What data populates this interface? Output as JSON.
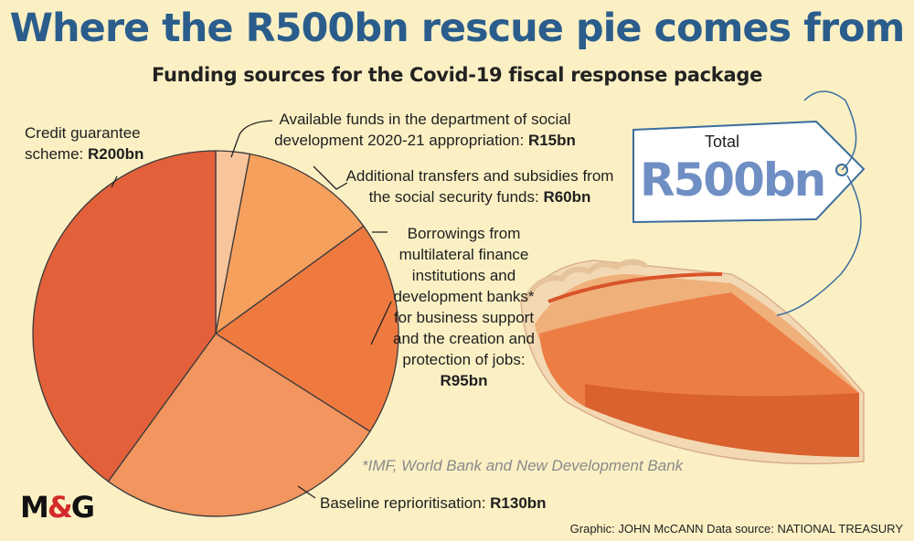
{
  "title": "Where the R500bn rescue pie comes from",
  "subtitle": "Funding sources for the Covid-19 fiscal response package",
  "tag": {
    "label": "Total",
    "value": "R500bn"
  },
  "footnote": "*IMF, World Bank and New Development Bank",
  "credit": "Graphic: JOHN McCANN  Data source: NATIONAL TREASURY",
  "logo": {
    "left": "M",
    "amp": "&",
    "right": "G"
  },
  "labels": {
    "social_dev": {
      "text": "Available funds in the department of social development 2020-21 appropriation: ",
      "value": "R15bn"
    },
    "social_security": {
      "text": "Additional transfers and subsidies from the social security funds: ",
      "value": "R60bn"
    },
    "borrowings": {
      "text": "Borrowings from multilateral finance institutions and development banks* for business support and the creation and protection of jobs: ",
      "value": "R95bn"
    },
    "baseline": {
      "text": "Baseline reprioritisation: ",
      "value": "R130bn"
    },
    "credit_guarantee": {
      "text": "Credit guarantee scheme: ",
      "value": "R200bn"
    }
  },
  "chart_data": {
    "type": "pie",
    "title": "Where the R500bn rescue pie comes from",
    "subtitle": "Funding sources for the Covid-19 fiscal response package",
    "unit": "R bn",
    "total": 500,
    "slices": [
      {
        "label": "Available funds in the department of social development 2020-21 appropriation",
        "value": 15,
        "color": "#f8c49c"
      },
      {
        "label": "Additional transfers and subsidies from the social security funds",
        "value": 60,
        "color": "#f6a05e"
      },
      {
        "label": "Borrowings from multilateral finance institutions and development banks for business support and the creation and protection of jobs",
        "value": 95,
        "color": "#ef7a40"
      },
      {
        "label": "Baseline reprioritisation",
        "value": 130,
        "color": "#f2955f"
      },
      {
        "label": "Credit guarantee scheme",
        "value": 200,
        "color": "#e2603a"
      }
    ]
  }
}
